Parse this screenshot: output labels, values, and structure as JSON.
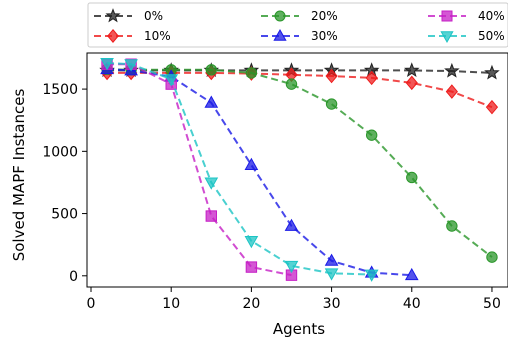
{
  "chart_data": {
    "type": "line",
    "xlabel": "Agents",
    "ylabel": "Solved MAPF Instances",
    "xlim": [
      -0.5,
      52
    ],
    "ylim": [
      -90,
      1790
    ],
    "xticks": [
      0,
      10,
      20,
      30,
      40,
      50
    ],
    "yticks": [
      0,
      500,
      1000,
      1500
    ],
    "grid": false,
    "legend_position": "top, above plot, 3 columns",
    "series": [
      {
        "name": "0%",
        "color": "#222222",
        "marker": "star",
        "x": [
          2,
          5,
          10,
          15,
          20,
          25,
          30,
          35,
          40,
          45,
          50
        ],
        "y": [
          1650,
          1650,
          1650,
          1650,
          1650,
          1650,
          1650,
          1650,
          1650,
          1645,
          1630
        ]
      },
      {
        "name": "10%",
        "color": "#ee1c1c",
        "marker": "diamond",
        "x": [
          2,
          5,
          10,
          15,
          20,
          25,
          30,
          35,
          40,
          45,
          50
        ],
        "y": [
          1630,
          1630,
          1630,
          1630,
          1625,
          1615,
          1605,
          1590,
          1550,
          1480,
          1355
        ]
      },
      {
        "name": "20%",
        "color": "#2a962a",
        "marker": "circle",
        "x": [
          2,
          5,
          10,
          15,
          20,
          25,
          30,
          35,
          40,
          45,
          50
        ],
        "y": [
          1660,
          1655,
          1655,
          1655,
          1630,
          1540,
          1380,
          1130,
          790,
          400,
          150
        ]
      },
      {
        "name": "30%",
        "color": "#1a1ae6",
        "marker": "triangle-up",
        "x": [
          2,
          5,
          10,
          15,
          20,
          25,
          30,
          35,
          40
        ],
        "y": [
          1660,
          1650,
          1600,
          1390,
          890,
          400,
          120,
          25,
          5
        ]
      },
      {
        "name": "40%",
        "color": "#c61fc6",
        "marker": "square",
        "x": [
          2,
          5,
          10,
          15,
          20,
          25
        ],
        "y": [
          1700,
          1700,
          1540,
          480,
          70,
          5
        ]
      },
      {
        "name": "50%",
        "color": "#1cc4c4",
        "marker": "triangle-down",
        "x": [
          2,
          5,
          10,
          15,
          20,
          25,
          30,
          35
        ],
        "y": [
          1710,
          1700,
          1580,
          750,
          280,
          80,
          20,
          10
        ]
      }
    ]
  }
}
